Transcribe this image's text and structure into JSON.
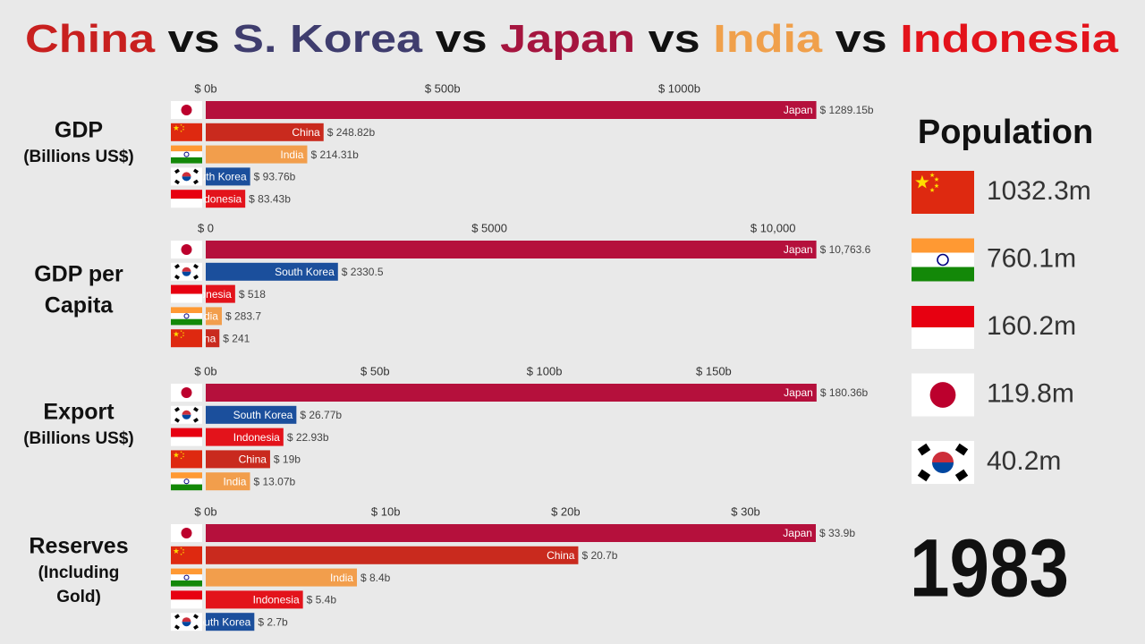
{
  "title": [
    {
      "text": "China",
      "color": "#c8201f"
    },
    {
      "text": "vs",
      "color": "#111111"
    },
    {
      "text": "S. Korea",
      "color": "#3f3d6e"
    },
    {
      "text": "vs",
      "color": "#111111"
    },
    {
      "text": "Japan",
      "color": "#a5153f"
    },
    {
      "text": "vs",
      "color": "#111111"
    },
    {
      "text": "India",
      "color": "#f0a04b"
    },
    {
      "text": "vs",
      "color": "#111111"
    },
    {
      "text": "Indonesia",
      "color": "#e3131b"
    }
  ],
  "chart_data": [
    {
      "type": "bar",
      "title_lines": [
        "GDP"
      ],
      "subtitle_lines": [
        "(Billions US$)"
      ],
      "categories": [
        "Japan",
        "China",
        "India",
        "South Korea",
        "Indonesia"
      ],
      "values": [
        1289.15,
        248.82,
        214.31,
        93.76,
        83.43
      ],
      "value_labels": [
        "$ 1289.15b",
        "$ 248.82b",
        "$ 214.31b",
        "$ 93.76b",
        "$ 83.43b"
      ],
      "colors": [
        "#b5103c",
        "#c92a1e",
        "#f29e4c",
        "#1b4f9c",
        "#e3131b"
      ],
      "xlim": [
        0,
        1290
      ],
      "xticks": [
        {
          "value": 0,
          "label": "$ 0b"
        },
        {
          "value": 500,
          "label": "$ 500b"
        },
        {
          "value": 1000,
          "label": "$ 1000b"
        }
      ]
    },
    {
      "type": "bar",
      "title_lines": [
        "GDP per",
        "Capita"
      ],
      "subtitle_lines": [],
      "categories": [
        "Japan",
        "South Korea",
        "Indonesia",
        "India",
        "China"
      ],
      "values": [
        10763.6,
        2330.5,
        518,
        283.7,
        241
      ],
      "value_labels": [
        "$ 10,763.6",
        "$ 2330.5",
        "$ 518",
        "$ 283.7",
        "$ 241"
      ],
      "colors": [
        "#b5103c",
        "#1b4f9c",
        "#e3131b",
        "#f29e4c",
        "#c92a1e"
      ],
      "xlim": [
        0,
        10770
      ],
      "xticks": [
        {
          "value": 0,
          "label": "$ 0"
        },
        {
          "value": 5000,
          "label": "$ 5000"
        },
        {
          "value": 10000,
          "label": "$ 10,000"
        }
      ]
    },
    {
      "type": "bar",
      "title_lines": [
        "Export"
      ],
      "subtitle_lines": [
        "(Billions US$)"
      ],
      "categories": [
        "Japan",
        "South Korea",
        "Indonesia",
        "China",
        "India"
      ],
      "values": [
        180.36,
        26.77,
        22.93,
        19,
        13.07
      ],
      "value_labels": [
        "$ 180.36b",
        "$ 26.77b",
        "$ 22.93b",
        "$ 19b",
        "$ 13.07b"
      ],
      "colors": [
        "#b5103c",
        "#1b4f9c",
        "#e3131b",
        "#c92a1e",
        "#f29e4c"
      ],
      "xlim": [
        0,
        180.4
      ],
      "xticks": [
        {
          "value": 0,
          "label": "$ 0b"
        },
        {
          "value": 50,
          "label": "$ 50b"
        },
        {
          "value": 100,
          "label": "$ 100b"
        },
        {
          "value": 150,
          "label": "$ 150b"
        }
      ]
    },
    {
      "type": "bar",
      "title_lines": [
        "Reserves"
      ],
      "subtitle_lines": [
        "(Including",
        "Gold)"
      ],
      "categories": [
        "Japan",
        "China",
        "India",
        "Indonesia",
        "South Korea"
      ],
      "values": [
        33.9,
        20.7,
        8.4,
        5.4,
        2.7
      ],
      "value_labels": [
        "$ 33.9b",
        "$ 20.7b",
        "$ 8.4b",
        "$ 5.4b",
        "$ 2.7b"
      ],
      "colors": [
        "#b5103c",
        "#c92a1e",
        "#f29e4c",
        "#e3131b",
        "#1b4f9c"
      ],
      "xlim": [
        0,
        33.95
      ],
      "xticks": [
        {
          "value": 0,
          "label": "$ 0b"
        },
        {
          "value": 10,
          "label": "$ 10b"
        },
        {
          "value": 20,
          "label": "$ 20b"
        },
        {
          "value": 30,
          "label": "$ 30b"
        }
      ]
    }
  ],
  "population": {
    "title": "Population",
    "items": [
      {
        "label": "1032.3m",
        "color": "#c92a1e"
      },
      {
        "label": "760.1m",
        "color": "#f29e4c"
      },
      {
        "label": "160.2m",
        "color": "#e3131b"
      },
      {
        "label": "119.8m",
        "color": "#b5103c"
      },
      {
        "label": "40.2m",
        "color": "#1b4f9c"
      }
    ]
  },
  "year": "1983"
}
